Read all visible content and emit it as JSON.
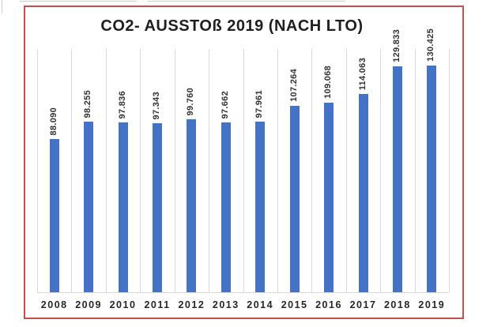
{
  "page": {
    "background": "#ffffff"
  },
  "colors": {
    "bar": "#4472c4",
    "frame_border": "#c4514e",
    "gridline": "#d9d9d9",
    "axis_line": "#d9d9d9",
    "title_text": "#1f1f1f",
    "value_label_text": "#323232",
    "year_label_text": "#262626",
    "artifact_line": "#bdbdbd"
  },
  "chart_data": {
    "type": "bar",
    "title": "CO2- AUSSTOß 2019 (NACH LTO)",
    "categories": [
      "2008",
      "2009",
      "2010",
      "2011",
      "2012",
      "2013",
      "2014",
      "2015",
      "2016",
      "2017",
      "2018",
      "2019"
    ],
    "values": [
      88090,
      98255,
      97836,
      97343,
      99760,
      97662,
      97961,
      107264,
      109068,
      114063,
      129833,
      130425
    ],
    "value_labels": [
      "88.090",
      "98.255",
      "97.836",
      "97.343",
      "99.760",
      "97.662",
      "97.961",
      "107.264",
      "109.068",
      "114.063",
      "129.833",
      "130.425"
    ],
    "ylim": [
      0,
      140000
    ],
    "xlabel": "",
    "ylabel": "",
    "legend": "none",
    "grid": "vertical category separators only",
    "value_label_rotation_deg": 90,
    "number_format": "German thousands separator (dot)"
  }
}
